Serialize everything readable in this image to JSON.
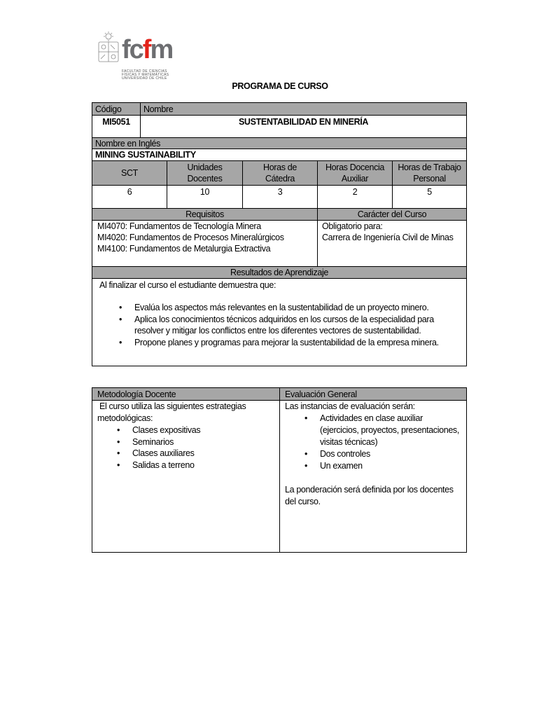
{
  "logo": {
    "brand": "fcfm",
    "lines": [
      "FACULTAD DE CIENCIAS",
      "FÍSICAS Y MATEMÁTICAS",
      "UNIVERSIDAD DE CHILE"
    ],
    "accent": "#e2231a"
  },
  "title": "PROGRAMA DE CURSO",
  "course": {
    "code_label": "Código",
    "name_label": "Nombre",
    "code": "MI5051",
    "name": "SUSTENTABILIDAD EN MINERÍA",
    "english_label": "Nombre en Inglés",
    "english_name": "MINING SUSTAINABILITY"
  },
  "hours": {
    "headers": [
      "SCT",
      "Unidades Docentes",
      "Horas de Cátedra",
      "Horas Docencia Auxiliar",
      "Horas de Trabajo Personal"
    ],
    "values": [
      "6",
      "10",
      "3",
      "2",
      "5"
    ]
  },
  "requisitos": {
    "label": "Requisitos",
    "items": [
      "MI4070:  Fundamentos de Tecnología Minera",
      "MI4020:  Fundamentos de Procesos Mineralúrgicos",
      "MI4100:  Fundamentos de Metalurgia Extractiva"
    ]
  },
  "caracter": {
    "label": "Carácter del Curso",
    "lines": [
      "Obligatorio para:",
      "Carrera de Ingeniería Civil de Minas"
    ]
  },
  "resultados": {
    "label": "Resultados de Aprendizaje",
    "intro": "Al finalizar el curso el estudiante demuestra que:",
    "items": [
      "Evalúa los aspectos más relevantes en la sustentabilidad de un proyecto minero.",
      "Aplica los conocimientos técnicos adquiridos en los cursos de la especialidad para resolver y mitigar los conflictos entre los diferentes vectores de sustentabilidad.",
      "Propone planes y programas para mejorar la sustentabilidad de la empresa minera."
    ]
  },
  "metodologia": {
    "label": "Metodología Docente",
    "intro": "El curso utiliza las siguientes estrategias metodológicas:",
    "items": [
      "Clases expositivas",
      "Seminarios",
      "Clases auxiliares",
      "Salidas a terreno"
    ]
  },
  "evaluacion": {
    "label": "Evaluación General",
    "intro": "Las instancias de evaluación serán:",
    "items": [
      "Actividades en clase auxiliar (ejercicios, proyectos, presentaciones, visitas técnicas)",
      "Dos controles",
      "Un examen"
    ],
    "note": "La ponderación será definida por los docentes del curso."
  }
}
